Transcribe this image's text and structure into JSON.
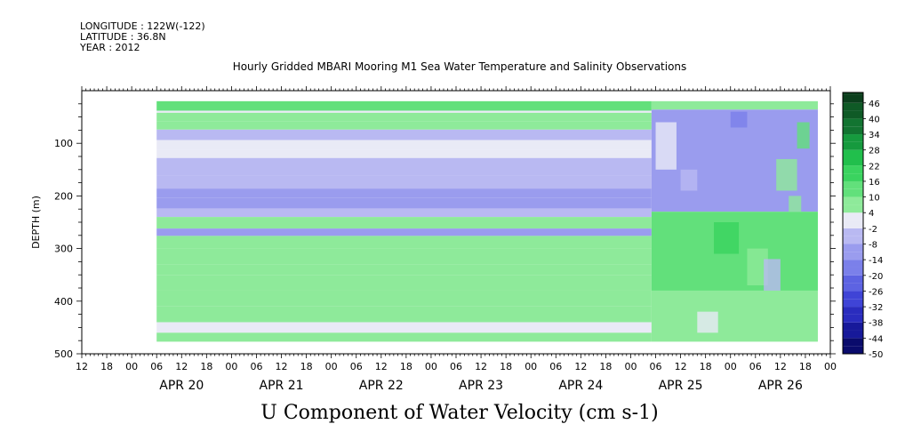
{
  "header": {
    "longitude": "LONGITUDE : 122W(-122)",
    "latitude": "LATITUDE : 36.8N",
    "year": "YEAR : 2012"
  },
  "title": "Hourly Gridded MBARI Mooring M1 Sea Water Temperature and Salinity Observations",
  "variable_label": "U Component of Water Velocity (cm s-1)",
  "chart_data": {
    "type": "heatmap",
    "title": "Hourly Gridded MBARI Mooring M1 Sea Water Temperature and Salinity Observations",
    "xlabel": "U Component of Water Velocity (cm s-1)",
    "ylabel": "DEPTH (m)",
    "y_range": [
      0,
      500
    ],
    "y_inverted": true,
    "y_ticks": [
      100,
      200,
      300,
      400,
      500
    ],
    "x_date_labels": [
      "APR 20",
      "APR 21",
      "APR 22",
      "APR 23",
      "APR 24",
      "APR 25",
      "APR 26"
    ],
    "x_hour_labels": [
      "00",
      "06",
      "12",
      "18"
    ],
    "x_start_day_label": "APR 20",
    "x_range_hours": [
      -12,
      168
    ],
    "data_start_hour": 6,
    "switch_hour": 125,
    "data_end_hour": 165,
    "depth_range": [
      20,
      477
    ],
    "colorbar": {
      "levels": [
        -50,
        -44,
        -38,
        -32,
        -26,
        -20,
        -14,
        -8,
        -2,
        4,
        10,
        16,
        22,
        28,
        34,
        40,
        46
      ],
      "label_values": [
        46,
        40,
        34,
        28,
        22,
        16,
        10,
        4,
        -2,
        -8,
        -14,
        -20,
        -26,
        -32,
        -38,
        -44,
        -50
      ],
      "range": [
        -50,
        50
      ],
      "step": 3
    },
    "bands": [
      {
        "from": 20,
        "to": 38,
        "u": 13
      },
      {
        "from": 38,
        "to": 42,
        "u": 2
      },
      {
        "from": 42,
        "to": 58,
        "u": 8
      },
      {
        "from": 58,
        "to": 74,
        "u": 4
      },
      {
        "from": 74,
        "to": 94,
        "u": -4
      },
      {
        "from": 94,
        "to": 112,
        "u": 3
      },
      {
        "from": 112,
        "to": 128,
        "u": -1
      },
      {
        "from": 128,
        "to": 162,
        "u": -5
      },
      {
        "from": 162,
        "to": 186,
        "u": -8
      },
      {
        "from": 186,
        "to": 204,
        "u": -14
      },
      {
        "from": 204,
        "to": 224,
        "u": -9
      },
      {
        "from": 224,
        "to": 240,
        "u": -4
      },
      {
        "from": 240,
        "to": 262,
        "u": 8
      },
      {
        "from": 262,
        "to": 276,
        "u": -9
      },
      {
        "from": 276,
        "to": 300,
        "u": 6
      },
      {
        "from": 300,
        "to": 330,
        "u": 8
      },
      {
        "from": 330,
        "to": 350,
        "u": 5
      },
      {
        "from": 350,
        "to": 380,
        "u": 7
      },
      {
        "from": 380,
        "to": 410,
        "u": 4
      },
      {
        "from": 410,
        "to": 440,
        "u": 5
      },
      {
        "from": 440,
        "to": 460,
        "u": 3
      },
      {
        "from": 460,
        "to": 477,
        "u": 5
      }
    ],
    "late_regime": [
      {
        "from": 20,
        "to": 36,
        "u": 8
      },
      {
        "from": 36,
        "to": 230,
        "u": -10
      },
      {
        "from": 230,
        "to": 380,
        "u": 12
      },
      {
        "from": 380,
        "to": 477,
        "u": 6
      }
    ]
  }
}
